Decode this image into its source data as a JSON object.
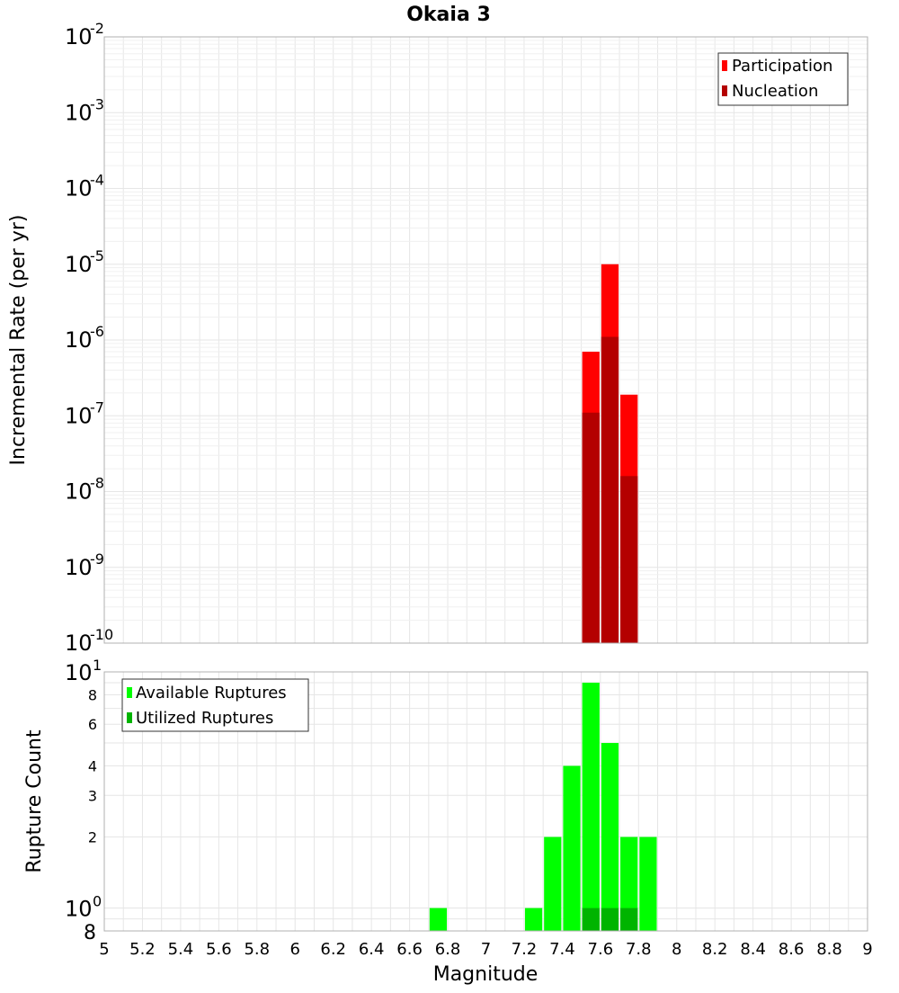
{
  "chart_data": [
    {
      "type": "bar",
      "title": "Okaia 3",
      "xlabel": "",
      "ylabel": "Incremental Rate (per yr)",
      "yscale": "log",
      "ylim": [
        1e-10,
        0.01
      ],
      "xlim": [
        5,
        9
      ],
      "grid": true,
      "legend_position": "top-right",
      "y_ticks": [
        {
          "base": "10",
          "exp": "-10"
        },
        {
          "base": "10",
          "exp": "-9"
        },
        {
          "base": "10",
          "exp": "-8"
        },
        {
          "base": "10",
          "exp": "-7"
        },
        {
          "base": "10",
          "exp": "-6"
        },
        {
          "base": "10",
          "exp": "-5"
        },
        {
          "base": "10",
          "exp": "-4"
        },
        {
          "base": "10",
          "exp": "-3"
        },
        {
          "base": "10",
          "exp": "-2"
        }
      ],
      "x": [
        7.55,
        7.65,
        7.75
      ],
      "series": [
        {
          "name": "Participation",
          "color": "#ff0000",
          "values": [
            7e-07,
            1e-05,
            1.9e-07
          ]
        },
        {
          "name": "Nucleation",
          "color": "#b40000",
          "values": [
            1.1e-07,
            1.1e-06,
            1.6e-08
          ]
        }
      ]
    },
    {
      "type": "bar",
      "title": "",
      "xlabel": "Magnitude",
      "ylabel": "Rupture Count",
      "yscale": "log",
      "ylim": [
        0.8,
        10
      ],
      "xlim": [
        5,
        9
      ],
      "grid": true,
      "legend_position": "top-left",
      "x_ticks": [
        "5",
        "5.2",
        "5.4",
        "5.6",
        "5.8",
        "6",
        "6.2",
        "6.4",
        "6.6",
        "6.8",
        "7",
        "7.2",
        "7.4",
        "7.6",
        "7.8",
        "8",
        "8.2",
        "8.4",
        "8.6",
        "8.8",
        "9"
      ],
      "y_minor_tick_values": [
        8,
        6,
        4,
        3,
        2,
        8
      ],
      "y_minor_ticks": [
        {
          "label": "8",
          "value": 8
        },
        {
          "label": "6",
          "value": 6
        },
        {
          "label": "4",
          "value": 4
        },
        {
          "label": "3",
          "value": 3
        },
        {
          "label": "2",
          "value": 2
        },
        {
          "label": "8",
          "value": 0.8
        }
      ],
      "y_major_ticks": [
        {
          "base": "10",
          "exp": "1",
          "value": 10
        },
        {
          "base": "10",
          "exp": "0",
          "value": 1
        }
      ],
      "x": [
        6.75,
        7.25,
        7.35,
        7.45,
        7.55,
        7.65,
        7.75,
        7.85
      ],
      "series": [
        {
          "name": "Available Ruptures",
          "color": "#00ff00",
          "values": [
            1,
            1,
            2,
            4,
            9,
            5,
            2,
            2
          ]
        },
        {
          "name": "Utilized Ruptures",
          "color": "#00b400",
          "x": [
            7.55,
            7.65,
            7.75
          ],
          "values": [
            1,
            1,
            1
          ]
        }
      ]
    }
  ]
}
